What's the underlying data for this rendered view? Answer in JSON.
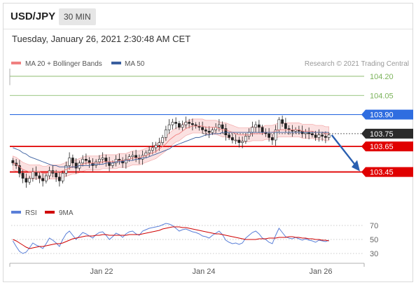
{
  "header": {
    "symbol": "USD/JPY",
    "timeframe": "30 MIN",
    "datetime": "Tuesday, January 26, 2021 2:30:48 AM CET"
  },
  "legend": {
    "ma20": "MA 20 + Bollinger Bands",
    "ma50": "MA 50",
    "credit": "Research © 2021 Trading Central",
    "rsi": "RSI",
    "nine_ma": "9MA"
  },
  "colors": {
    "ma20": "#f08080",
    "ma50": "#3a5f9f",
    "resistance_blue": "#2f6de0",
    "support_red": "#e00000",
    "target_green": "#7bb35a",
    "rsi": "#5a7fd8",
    "nine_ma": "#d00000"
  },
  "chart_data": {
    "type": "candlestick",
    "instrument": "USD/JPY",
    "interval": "30 MIN",
    "ylim": [
      103.25,
      104.26
    ],
    "x_ticks": [
      "Jan 22",
      "Jan 24",
      "Jan 26"
    ],
    "price_levels": [
      {
        "value": 104.2,
        "label": "104.20",
        "style": "target"
      },
      {
        "value": 104.05,
        "label": "104.05",
        "style": "target"
      },
      {
        "value": 103.9,
        "label": "103.90",
        "style": "resistance"
      },
      {
        "value": 103.75,
        "label": "103.75",
        "style": "current"
      },
      {
        "value": 103.65,
        "label": "103.65",
        "style": "support"
      },
      {
        "value": 103.45,
        "label": "103.45",
        "style": "support"
      }
    ],
    "forecast_arrow": {
      "from": 103.74,
      "to": 103.45
    },
    "close_series": [
      103.52,
      103.5,
      103.44,
      103.4,
      103.37,
      103.4,
      103.45,
      103.42,
      103.4,
      103.38,
      103.42,
      103.46,
      103.44,
      103.41,
      103.38,
      103.44,
      103.5,
      103.56,
      103.52,
      103.48,
      103.52,
      103.55,
      103.54,
      103.52,
      103.5,
      103.53,
      103.55,
      103.56,
      103.53,
      103.5,
      103.52,
      103.55,
      103.54,
      103.52,
      103.55,
      103.57,
      103.58,
      103.56,
      103.55,
      103.58,
      103.6,
      103.62,
      103.64,
      103.66,
      103.68,
      103.72,
      103.78,
      103.82,
      103.84,
      103.83,
      103.8,
      103.82,
      103.84,
      103.83,
      103.82,
      103.81,
      103.8,
      103.78,
      103.77,
      103.76,
      103.78,
      103.8,
      103.82,
      103.79,
      103.74,
      103.72,
      103.7,
      103.7,
      103.68,
      103.69,
      103.73,
      103.76,
      103.8,
      103.82,
      103.8,
      103.76,
      103.75,
      103.72,
      103.7,
      103.78,
      103.86,
      103.83,
      103.79,
      103.78,
      103.77,
      103.78,
      103.77,
      103.75,
      103.76,
      103.75,
      103.74,
      103.72,
      103.74,
      103.73,
      103.72,
      103.74
    ],
    "ma20_series": [
      103.52,
      103.51,
      103.49,
      103.47,
      103.46,
      103.45,
      103.45,
      103.45,
      103.45,
      103.44,
      103.44,
      103.45,
      103.45,
      103.45,
      103.45,
      103.46,
      103.47,
      103.48,
      103.49,
      103.49,
      103.5,
      103.51,
      103.52,
      103.52,
      103.52,
      103.52,
      103.52,
      103.53,
      103.53,
      103.53,
      103.53,
      103.53,
      103.54,
      103.54,
      103.54,
      103.55,
      103.56,
      103.56,
      103.56,
      103.57,
      103.58,
      103.59,
      103.6,
      103.61,
      103.63,
      103.65,
      103.67,
      103.7,
      103.72,
      103.74,
      103.75,
      103.77,
      103.79,
      103.8,
      103.81,
      103.81,
      103.81,
      103.81,
      103.8,
      103.8,
      103.8,
      103.8,
      103.79,
      103.78,
      103.78,
      103.77,
      103.76,
      103.75,
      103.74,
      103.74,
      103.74,
      103.74,
      103.75,
      103.75,
      103.75,
      103.75,
      103.76,
      103.76,
      103.76,
      103.77,
      103.78,
      103.78,
      103.78,
      103.78,
      103.78,
      103.78,
      103.78,
      103.77,
      103.77,
      103.77,
      103.77,
      103.76,
      103.76,
      103.76,
      103.75,
      103.75
    ],
    "bb_width": 0.055,
    "ma50_series": [
      103.64,
      103.63,
      103.62,
      103.6,
      103.59,
      103.57,
      103.56,
      103.55,
      103.54,
      103.53,
      103.52,
      103.51,
      103.5,
      103.5,
      103.49,
      103.49,
      103.49,
      103.49,
      103.49,
      103.49,
      103.5,
      103.5,
      103.5,
      103.5,
      103.51,
      103.51,
      103.51,
      103.51,
      103.52,
      103.52,
      103.52,
      103.53,
      103.53,
      103.53,
      103.54,
      103.54,
      103.54,
      103.55,
      103.55,
      103.56,
      103.56,
      103.57,
      103.58,
      103.59,
      103.6,
      103.61,
      103.62,
      103.63,
      103.65,
      103.66,
      103.67,
      103.68,
      103.69,
      103.7,
      103.71,
      103.72,
      103.72,
      103.73,
      103.74,
      103.74,
      103.75,
      103.75,
      103.75,
      103.76,
      103.76,
      103.76,
      103.76,
      103.76,
      103.76,
      103.76,
      103.76,
      103.76,
      103.76,
      103.76,
      103.76,
      103.76,
      103.76,
      103.76,
      103.76,
      103.76,
      103.76,
      103.76,
      103.76,
      103.76,
      103.76,
      103.76,
      103.76,
      103.76,
      103.76,
      103.76,
      103.76,
      103.76,
      103.76,
      103.76,
      103.76,
      103.76
    ],
    "rsi": {
      "ylim": [
        22,
        78
      ],
      "levels": [
        70,
        50,
        30
      ],
      "rsi_series": [
        48,
        40,
        33,
        30,
        32,
        38,
        45,
        42,
        40,
        37,
        44,
        52,
        49,
        45,
        40,
        50,
        58,
        62,
        56,
        50,
        55,
        60,
        58,
        55,
        52,
        57,
        60,
        61,
        56,
        50,
        54,
        59,
        57,
        53,
        58,
        61,
        62,
        58,
        56,
        62,
        64,
        66,
        67,
        68,
        69,
        71,
        73,
        72,
        70,
        66,
        62,
        64,
        65,
        63,
        61,
        60,
        58,
        55,
        54,
        52,
        56,
        59,
        62,
        57,
        49,
        46,
        44,
        45,
        43,
        45,
        52,
        56,
        60,
        62,
        58,
        52,
        50,
        46,
        44,
        56,
        66,
        60,
        54,
        52,
        51,
        53,
        51,
        49,
        51,
        49,
        48,
        46,
        49,
        48,
        47,
        49
      ],
      "nine_ma_series": [
        50,
        48,
        45,
        42,
        39,
        37,
        38,
        39,
        40,
        40,
        41,
        42,
        43,
        44,
        44,
        45,
        47,
        49,
        51,
        52,
        53,
        54,
        55,
        55,
        55,
        56,
        56,
        57,
        57,
        56,
        56,
        56,
        56,
        56,
        56,
        57,
        57,
        57,
        57,
        58,
        59,
        60,
        61,
        62,
        63,
        65,
        66,
        67,
        68,
        68,
        68,
        67,
        67,
        66,
        65,
        64,
        63,
        62,
        61,
        60,
        59,
        58,
        58,
        57,
        56,
        55,
        54,
        53,
        52,
        51,
        50,
        50,
        50,
        50,
        51,
        51,
        51,
        52,
        52,
        52,
        53,
        53,
        53,
        54,
        54,
        53,
        53,
        52,
        52,
        51,
        51,
        50,
        50,
        49,
        49,
        48
      ]
    }
  }
}
